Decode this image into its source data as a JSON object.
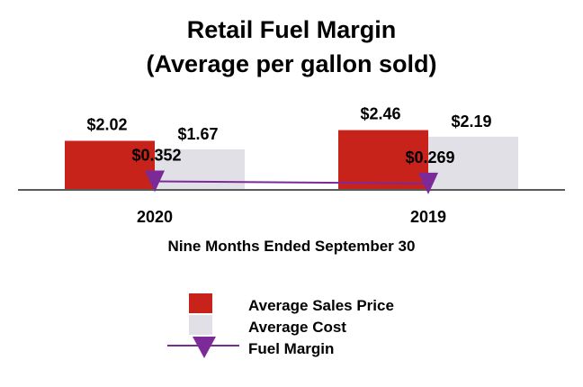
{
  "chart_data": {
    "type": "bar",
    "title": "Retail Fuel Margin",
    "subtitle": "(Average per gallon sold)",
    "xlabel": "Nine Months Ended September 30",
    "ylabel": "",
    "categories": [
      "2020",
      "2019"
    ],
    "series": [
      {
        "name": "Average Sales Price",
        "type": "bar",
        "color": "#c8231b",
        "values": [
          2.02,
          2.46
        ],
        "labels": [
          "$2.02",
          "$2.46"
        ]
      },
      {
        "name": "Average Cost",
        "type": "bar",
        "color": "#e0e0e6",
        "values": [
          1.67,
          2.19
        ],
        "labels": [
          "$1.67",
          "$2.19"
        ]
      },
      {
        "name": "Fuel Margin",
        "type": "line",
        "color": "#7b2a97",
        "values": [
          0.352,
          0.269
        ],
        "labels": [
          "$0.352",
          "$0.269"
        ]
      }
    ],
    "ylim": [
      0,
      2.5
    ],
    "grid": false,
    "legend_position": "bottom"
  }
}
